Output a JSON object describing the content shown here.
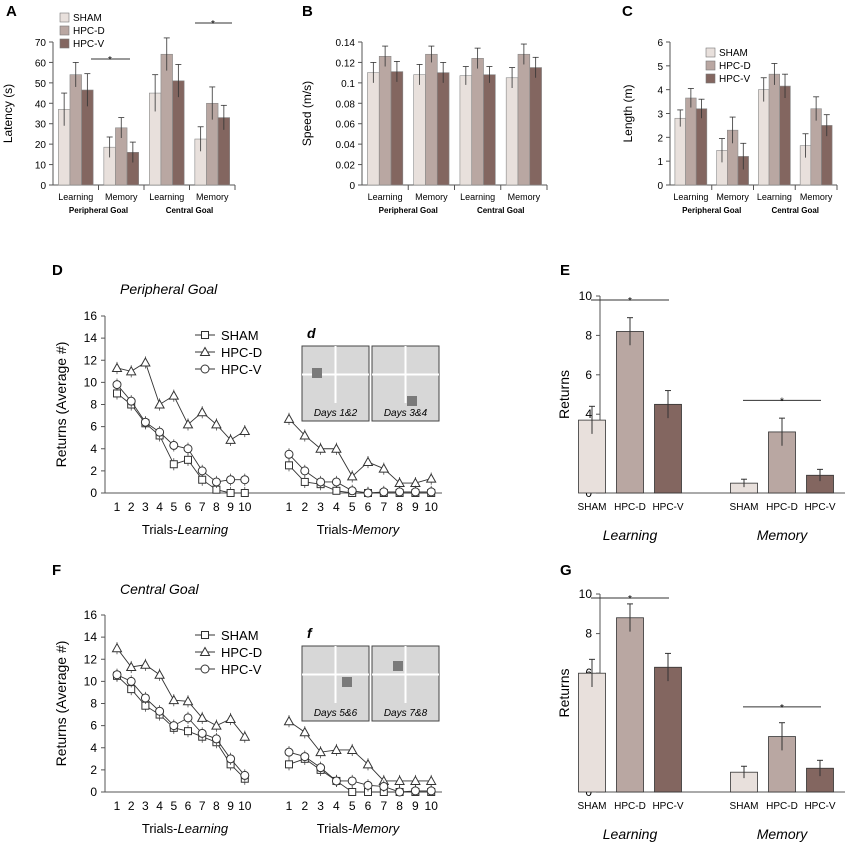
{
  "colors": {
    "sham": "#e8e0dc",
    "hpcd": "#b9a7a2",
    "hpcv": "#836660",
    "axis": "#555555"
  },
  "legend": [
    "SHAM",
    "HPC-D",
    "HPC-V"
  ],
  "chart_data": [
    {
      "id": "A",
      "type": "bar",
      "letter": "A",
      "ylabel": "Latency (s)",
      "ylim": [
        0,
        70
      ],
      "yticks": [
        "0",
        "10",
        "20",
        "30",
        "40",
        "50",
        "60",
        "70"
      ],
      "categories": [
        "Learning",
        "Memory",
        "Learning",
        "Memory"
      ],
      "groups": [
        "Peripheral Goal",
        "Central Goal"
      ],
      "series": [
        {
          "name": "SHAM",
          "values": [
            37,
            18.5,
            45,
            22.5
          ],
          "errors": [
            8,
            5,
            9,
            6
          ]
        },
        {
          "name": "HPC-D",
          "values": [
            54,
            28,
            64,
            40
          ],
          "errors": [
            6,
            5,
            8,
            8
          ]
        },
        {
          "name": "HPC-V",
          "values": [
            46.5,
            16,
            51,
            33
          ],
          "errors": [
            8,
            5,
            8,
            6
          ]
        }
      ],
      "significance": [
        {
          "label": "*",
          "between": "Memory",
          "group": 0
        },
        {
          "label": "*",
          "between": "Learning-Memory",
          "group": 1
        }
      ]
    },
    {
      "id": "B",
      "type": "bar",
      "letter": "B",
      "ylabel": "Speed (m/s)",
      "ylim": [
        0,
        0.14
      ],
      "yticks": [
        "0",
        "0.02",
        "0.04",
        "0.06",
        "0.08",
        "0.1",
        "0.12",
        "0.14"
      ],
      "categories": [
        "Learning",
        "Memory",
        "Learning",
        "Memory"
      ],
      "groups": [
        "Peripheral Goal",
        "Central Goal"
      ],
      "series": [
        {
          "name": "SHAM",
          "values": [
            0.11,
            0.108,
            0.107,
            0.105
          ],
          "errors": [
            0.01,
            0.01,
            0.009,
            0.01
          ]
        },
        {
          "name": "HPC-D",
          "values": [
            0.126,
            0.128,
            0.124,
            0.128
          ],
          "errors": [
            0.01,
            0.008,
            0.01,
            0.01
          ]
        },
        {
          "name": "HPC-V",
          "values": [
            0.111,
            0.11,
            0.108,
            0.115
          ],
          "errors": [
            0.01,
            0.01,
            0.008,
            0.01
          ]
        }
      ]
    },
    {
      "id": "C",
      "type": "bar",
      "letter": "C",
      "ylabel": "Length (m)",
      "ylim": [
        0,
        6
      ],
      "yticks": [
        "0",
        "1",
        "2",
        "3",
        "4",
        "5",
        "6"
      ],
      "categories": [
        "Learning",
        "Memory",
        "Learning",
        "Memory"
      ],
      "groups": [
        "Peripheral Goal",
        "Central Goal"
      ],
      "series": [
        {
          "name": "SHAM",
          "values": [
            2.8,
            1.45,
            4.0,
            1.65
          ],
          "errors": [
            0.35,
            0.5,
            0.5,
            0.5
          ]
        },
        {
          "name": "HPC-D",
          "values": [
            3.65,
            2.3,
            4.65,
            3.2
          ],
          "errors": [
            0.4,
            0.55,
            0.45,
            0.5
          ]
        },
        {
          "name": "HPC-V",
          "values": [
            3.2,
            1.2,
            4.15,
            2.5
          ],
          "errors": [
            0.4,
            0.55,
            0.5,
            0.45
          ]
        }
      ]
    },
    {
      "id": "D",
      "type": "line",
      "letter": "D",
      "title": "Peripheral Goal",
      "ylabel": "Returns (Average #)",
      "ylim": [
        0,
        16
      ],
      "yticks": [
        "0",
        "2",
        "4",
        "6",
        "8",
        "10",
        "12",
        "14",
        "16"
      ],
      "x": [
        "1",
        "2",
        "3",
        "4",
        "5",
        "6",
        "7",
        "8",
        "9",
        "10"
      ],
      "xlabel_learning": [
        "Trials-",
        "Learning"
      ],
      "xlabel_memory": [
        "Trials-",
        "Memory"
      ],
      "inset_letter": "d",
      "inset_labels": [
        "Days 1&2",
        "Days 3&4"
      ],
      "series": [
        {
          "name": "SHAM",
          "marker": "square",
          "learning": [
            9.0,
            8.0,
            6.3,
            5.2,
            2.6,
            3.0,
            1.2,
            0.3,
            0.0,
            0.0
          ],
          "memory": [
            2.5,
            1.0,
            0.8,
            0.2,
            0.0,
            0.0,
            0.0,
            0.0,
            0.0,
            0.0
          ]
        },
        {
          "name": "HPC-D",
          "marker": "triangle",
          "learning": [
            11.3,
            11.0,
            11.8,
            8.0,
            8.8,
            6.2,
            7.3,
            6.2,
            4.8,
            5.6
          ],
          "memory": [
            6.7,
            5.2,
            4.0,
            4.0,
            1.5,
            2.8,
            2.2,
            0.9,
            0.9,
            1.3
          ]
        },
        {
          "name": "HPC-V",
          "marker": "circle",
          "learning": [
            9.8,
            8.3,
            6.4,
            5.5,
            4.3,
            4.0,
            2.0,
            1.0,
            1.2,
            1.2
          ],
          "memory": [
            3.5,
            2.0,
            1.0,
            1.0,
            0.2,
            0.0,
            0.1,
            0.1,
            0.1,
            0.1
          ]
        }
      ]
    },
    {
      "id": "E",
      "type": "bar",
      "letter": "E",
      "ylabel": "Returns",
      "ylim": [
        0,
        10
      ],
      "yticks": [
        "0",
        "2",
        "4",
        "6",
        "8",
        "10"
      ],
      "groups": [
        "Learning",
        "Memory"
      ],
      "categories": [
        "SHAM",
        "HPC-D",
        "HPC-V"
      ],
      "values": {
        "Learning": [
          3.7,
          8.2,
          4.5
        ],
        "Memory": [
          0.5,
          3.1,
          0.9
        ]
      },
      "errors": {
        "Learning": [
          0.7,
          0.7,
          0.7
        ],
        "Memory": [
          0.2,
          0.7,
          0.3
        ]
      },
      "significance": "*"
    },
    {
      "id": "F",
      "type": "line",
      "letter": "F",
      "title": "Central Goal",
      "ylabel": "Returns (Average #)",
      "ylim": [
        0,
        16
      ],
      "yticks": [
        "0",
        "2",
        "4",
        "6",
        "8",
        "10",
        "12",
        "14",
        "16"
      ],
      "x": [
        "1",
        "2",
        "3",
        "4",
        "5",
        "6",
        "7",
        "8",
        "9",
        "10"
      ],
      "xlabel_learning": [
        "Trials-",
        "Learning"
      ],
      "xlabel_memory": [
        "Trials-",
        "Memory"
      ],
      "inset_letter": "f",
      "inset_labels": [
        "Days 5&6",
        "Days 7&8"
      ],
      "series": [
        {
          "name": "SHAM",
          "marker": "square",
          "learning": [
            10.5,
            9.3,
            7.8,
            7.0,
            5.8,
            5.5,
            5.0,
            4.5,
            2.5,
            1.2
          ],
          "memory": [
            2.5,
            3.0,
            2.0,
            1.0,
            0.0,
            0.0,
            0.0,
            0.0,
            0.0,
            0.0
          ]
        },
        {
          "name": "HPC-D",
          "marker": "triangle",
          "learning": [
            13.0,
            11.3,
            11.5,
            10.6,
            8.3,
            8.2,
            6.7,
            6.0,
            6.6,
            5.0
          ],
          "memory": [
            6.4,
            5.4,
            3.6,
            3.8,
            3.8,
            2.5,
            1.0,
            1.0,
            1.0,
            1.0
          ]
        },
        {
          "name": "HPC-V",
          "marker": "circle",
          "learning": [
            10.6,
            10.0,
            8.5,
            7.3,
            6.0,
            6.7,
            5.3,
            4.8,
            3.0,
            1.5
          ],
          "memory": [
            3.6,
            3.2,
            2.2,
            1.0,
            1.0,
            0.6,
            0.5,
            0.0,
            0.1,
            0.1
          ]
        }
      ]
    },
    {
      "id": "G",
      "type": "bar",
      "letter": "G",
      "ylabel": "Returns",
      "ylim": [
        0,
        10
      ],
      "yticks": [
        "0",
        "2",
        "4",
        "6",
        "8",
        "10"
      ],
      "groups": [
        "Learning",
        "Memory"
      ],
      "categories": [
        "SHAM",
        "HPC-D",
        "HPC-V"
      ],
      "values": {
        "Learning": [
          6.0,
          8.8,
          6.3
        ],
        "Memory": [
          1.0,
          2.8,
          1.2
        ]
      },
      "errors": {
        "Learning": [
          0.7,
          0.7,
          0.7
        ],
        "Memory": [
          0.3,
          0.7,
          0.4
        ]
      },
      "significance": "*"
    }
  ]
}
